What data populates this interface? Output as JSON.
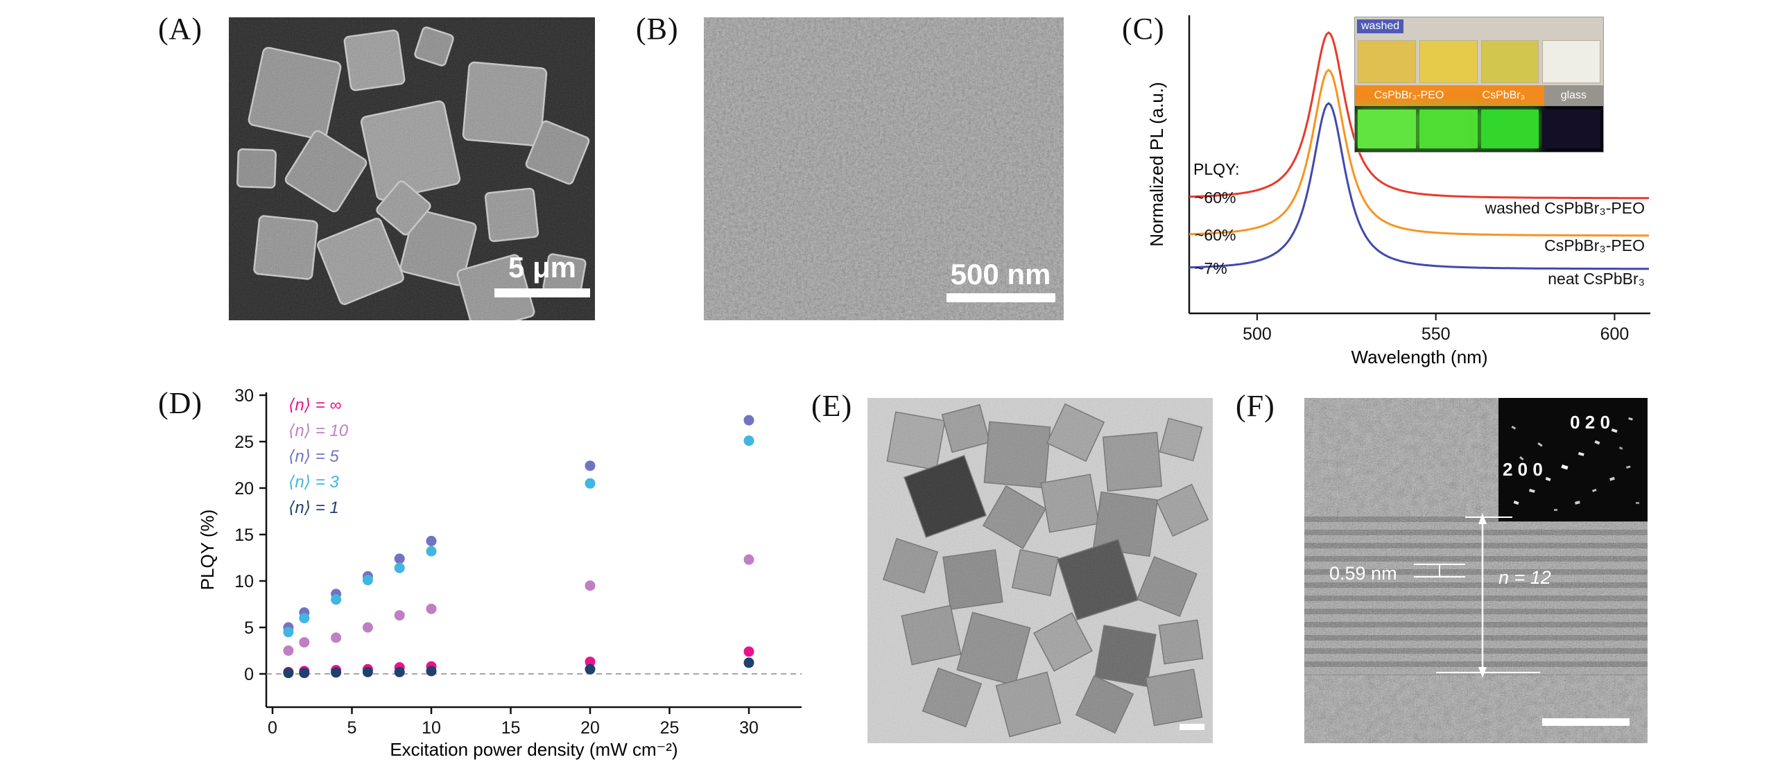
{
  "figure": {
    "panels": {
      "a": {
        "label": "(A)",
        "scale_bar": "5 μm"
      },
      "b": {
        "label": "(B)",
        "scale_bar": "500 nm"
      },
      "c": {
        "label": "(C)",
        "inset": {
          "washed": "washed",
          "film1": "CsPbBr₃-PEO",
          "film2": "CsPbBr₃",
          "glass": "glass"
        }
      },
      "d": {
        "label": "(D)"
      },
      "e": {
        "label": "(E)"
      },
      "f": {
        "label": "(F)",
        "d_spacing": "0.59 nm",
        "layer_label": "n = 12",
        "spot_label_1": "0 2 0",
        "spot_label_2": "2 0 0"
      }
    }
  },
  "chart_data": [
    {
      "id": "pl_spectra",
      "type": "line",
      "xlabel": "Wavelength (nm)",
      "ylabel": "Normalized PL (a.u.)",
      "xlim": [
        481,
        610
      ],
      "xticks": [
        500,
        550,
        600
      ],
      "plqy_label": "PLQY:",
      "peak_nm": 520,
      "fwhm_nm": 18,
      "legend_position": "right of each curve",
      "series": [
        {
          "label": "neat CsPbBr₃",
          "plqy": "~7%",
          "color": "#4149ae"
        },
        {
          "label": "CsPbBr₃-PEO",
          "plqy": "~60%",
          "color": "#f79420"
        },
        {
          "label": "washed CsPbBr₃-PEO",
          "plqy": "~60%",
          "color": "#e8392b"
        }
      ]
    },
    {
      "id": "plqy_vs_power",
      "type": "scatter",
      "xlabel": "Excitation power density (mW cm⁻²)",
      "ylabel": "PLQY (%)",
      "xlim": [
        0,
        33
      ],
      "ylim": [
        -3.5,
        30
      ],
      "xticks": [
        0,
        5,
        10,
        15,
        20,
        25,
        30
      ],
      "yticks": [
        0,
        5,
        10,
        15,
        20,
        25,
        30
      ],
      "zero_line": 0,
      "legend_position": "top-left inside plot",
      "x": [
        1,
        2,
        4,
        6,
        8,
        10,
        20,
        30
      ],
      "series": [
        {
          "label": "⟨n⟩ = ∞",
          "color": "#e8148c",
          "values": [
            0.2,
            0.3,
            0.4,
            0.5,
            0.7,
            0.8,
            1.3,
            2.4
          ]
        },
        {
          "label": "⟨n⟩ = 10",
          "color": "#bf7fc4",
          "values": [
            2.5,
            3.4,
            3.9,
            5.0,
            6.3,
            7.0,
            9.5,
            12.3
          ]
        },
        {
          "label": "⟨n⟩ = 5",
          "color": "#7173c2",
          "values": [
            5.0,
            6.6,
            8.6,
            10.5,
            12.4,
            14.3,
            22.4,
            27.3
          ]
        },
        {
          "label": "⟨n⟩ = 3",
          "color": "#41b6e0",
          "values": [
            4.5,
            6.0,
            8.0,
            10.1,
            11.4,
            13.2,
            20.5,
            25.1
          ]
        },
        {
          "label": "⟨n⟩ = 1",
          "color": "#20406e",
          "values": [
            0.1,
            0.1,
            0.15,
            0.2,
            0.2,
            0.3,
            0.5,
            1.2
          ]
        }
      ]
    }
  ]
}
